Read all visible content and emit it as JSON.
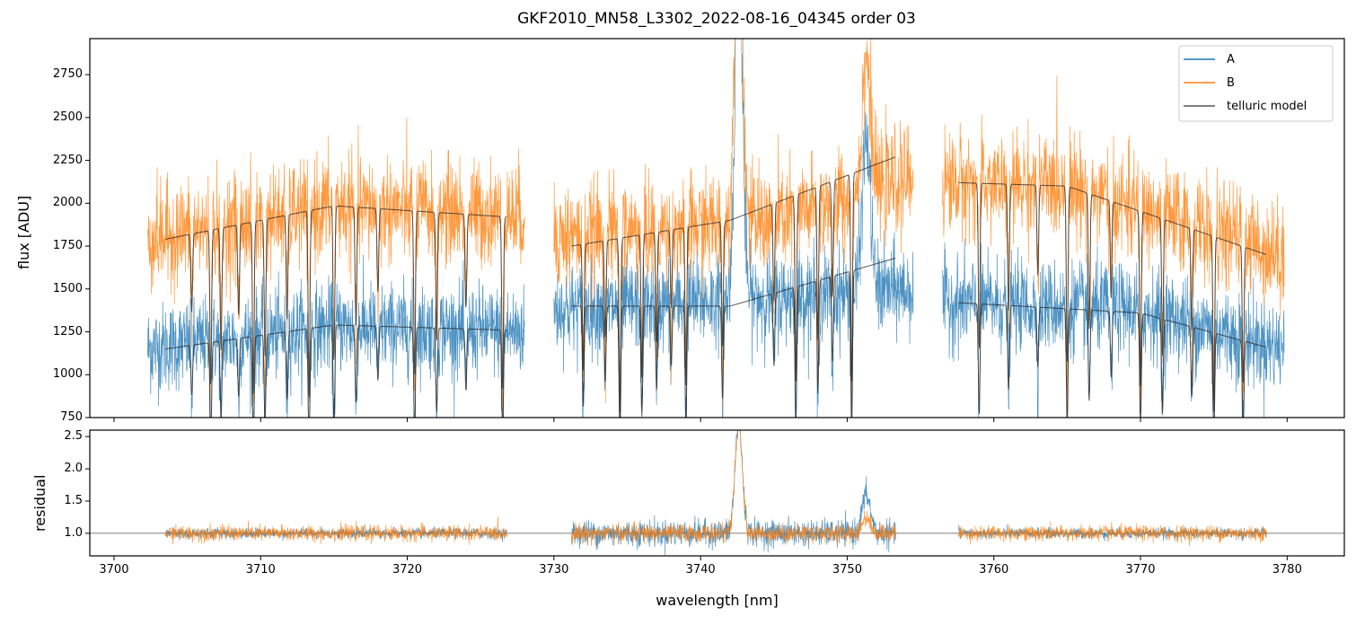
{
  "chart_data": [
    {
      "type": "line",
      "title": "GKF2010_MN58_L3302_2022-08-16_04345  order 03",
      "xlabel": "",
      "ylabel": "flux [ADU]",
      "xlim": [
        3698.35,
        3783.9
      ],
      "ylim": [
        750,
        2960
      ],
      "xticks": [
        3700,
        3710,
        3720,
        3730,
        3740,
        3750,
        3760,
        3770,
        3780
      ],
      "yticks": [
        750,
        1000,
        1250,
        1500,
        1750,
        2000,
        2250,
        2500,
        2750
      ],
      "ytick_labels": [
        "750",
        "1000",
        "1250",
        "1500",
        "1750",
        "2000",
        "2250",
        "2500",
        "2750"
      ],
      "legend": {
        "placement": "top-right",
        "entries": [
          "A",
          "B",
          "telluric model"
        ]
      },
      "colors": {
        "A": "#1f77b4",
        "B": "#ff7f0e",
        "model": "#555555"
      },
      "data_segments": [
        [
          3702.3,
          3728.0
        ],
        [
          3730.0,
          3754.5
        ],
        [
          3756.5,
          3779.8
        ]
      ],
      "model_segments": [
        [
          3703.5,
          3726.8
        ],
        [
          3731.2,
          3753.3
        ],
        [
          3757.6,
          3778.6
        ]
      ],
      "series": [
        {
          "name": "A",
          "continuum": [
            [
              3702.3,
              1150
            ],
            [
              3715,
              1280
            ],
            [
              3728,
              1250
            ],
            [
              3730,
              1380
            ],
            [
              3745,
              1450
            ],
            [
              3754.5,
              1500
            ],
            [
              3756.5,
              1420
            ],
            [
              3770,
              1380
            ],
            [
              3779.8,
              1150
            ]
          ],
          "noise_sd": 130
        },
        {
          "name": "B",
          "continuum": [
            [
              3702.3,
              1790
            ],
            [
              3715,
              1980
            ],
            [
              3728,
              1930
            ],
            [
              3730,
              1800
            ],
            [
              3745,
              1900
            ],
            [
              3754.5,
              2150
            ],
            [
              3756.5,
              2120
            ],
            [
              3765,
              2100
            ],
            [
              3779.8,
              1700
            ]
          ],
          "noise_sd": 150
        },
        {
          "name": "telluric model (A)",
          "continuum": [
            [
              3703.5,
              1150
            ],
            [
              3715,
              1290
            ],
            [
              3726.8,
              1260
            ],
            [
              3731.2,
              1400
            ],
            [
              3742,
              1400
            ],
            [
              3753.3,
              1680
            ],
            [
              3757.6,
              1420
            ],
            [
              3770,
              1360
            ],
            [
              3778.6,
              1160
            ]
          ]
        },
        {
          "name": "telluric model (B)",
          "continuum": [
            [
              3703.5,
              1790
            ],
            [
              3715,
              1985
            ],
            [
              3726.8,
              1920
            ],
            [
              3731.2,
              1750
            ],
            [
              3742,
              1900
            ],
            [
              3753.3,
              2270
            ],
            [
              3757.6,
              2120
            ],
            [
              3765,
              2100
            ],
            [
              3778.6,
              1700
            ]
          ]
        }
      ],
      "absorption_lines_nm": [
        3705.3,
        3706.6,
        3707.3,
        3708.5,
        3709.5,
        3710.3,
        3711.8,
        3713.3,
        3715.0,
        3716.5,
        3718.0,
        3720.5,
        3722.0,
        3724.0,
        3726.5,
        3732.0,
        3733.5,
        3734.5,
        3736.0,
        3737.0,
        3738.0,
        3739.0,
        3741.5,
        3745.0,
        3746.5,
        3748.0,
        3749.0,
        3750.3,
        3759.0,
        3761.0,
        3763.0,
        3765.0,
        3766.5,
        3768.0,
        3770.0,
        3771.5,
        3773.5,
        3775.0,
        3777.0
      ],
      "emission_features": [
        {
          "center": 3742.6,
          "amp_A": 2200,
          "amp_B": 2200,
          "width": 0.35
        },
        {
          "center": 3751.3,
          "amp_A": 900,
          "amp_B": 800,
          "width": 0.4
        }
      ]
    },
    {
      "type": "line",
      "xlabel": "wavelength [nm]",
      "ylabel": "residual",
      "xlim": [
        3698.35,
        3783.9
      ],
      "ylim": [
        0.65,
        2.6
      ],
      "xticks": [
        3700,
        3710,
        3720,
        3730,
        3740,
        3750,
        3760,
        3770,
        3780
      ],
      "xtick_labels": [
        "3700",
        "3710",
        "3720",
        "3730",
        "3740",
        "3750",
        "3760",
        "3770",
        "3780"
      ],
      "yticks": [
        1.0,
        1.5,
        2.0,
        2.5
      ],
      "ytick_labels": [
        "1.0",
        "1.5",
        "2.0",
        "2.5"
      ],
      "reference_line": 1.0,
      "segments": [
        [
          3703.5,
          3726.8
        ],
        [
          3731.2,
          3753.3
        ],
        [
          3757.6,
          3778.6
        ]
      ],
      "series": [
        {
          "name": "A",
          "noise_sd": [
            0.04,
            0.1,
            0.04
          ],
          "bumps": [
            {
              "center": 3742.6,
              "amp": 1.7,
              "width": 0.35
            },
            {
              "center": 3751.3,
              "amp": 0.6,
              "width": 0.4
            }
          ]
        },
        {
          "name": "B",
          "noise_sd": [
            0.06,
            0.07,
            0.06
          ],
          "bumps": [
            {
              "center": 3742.6,
              "amp": 1.7,
              "width": 0.35
            },
            {
              "center": 3751.3,
              "amp": 0.25,
              "width": 0.4
            }
          ]
        }
      ]
    }
  ]
}
